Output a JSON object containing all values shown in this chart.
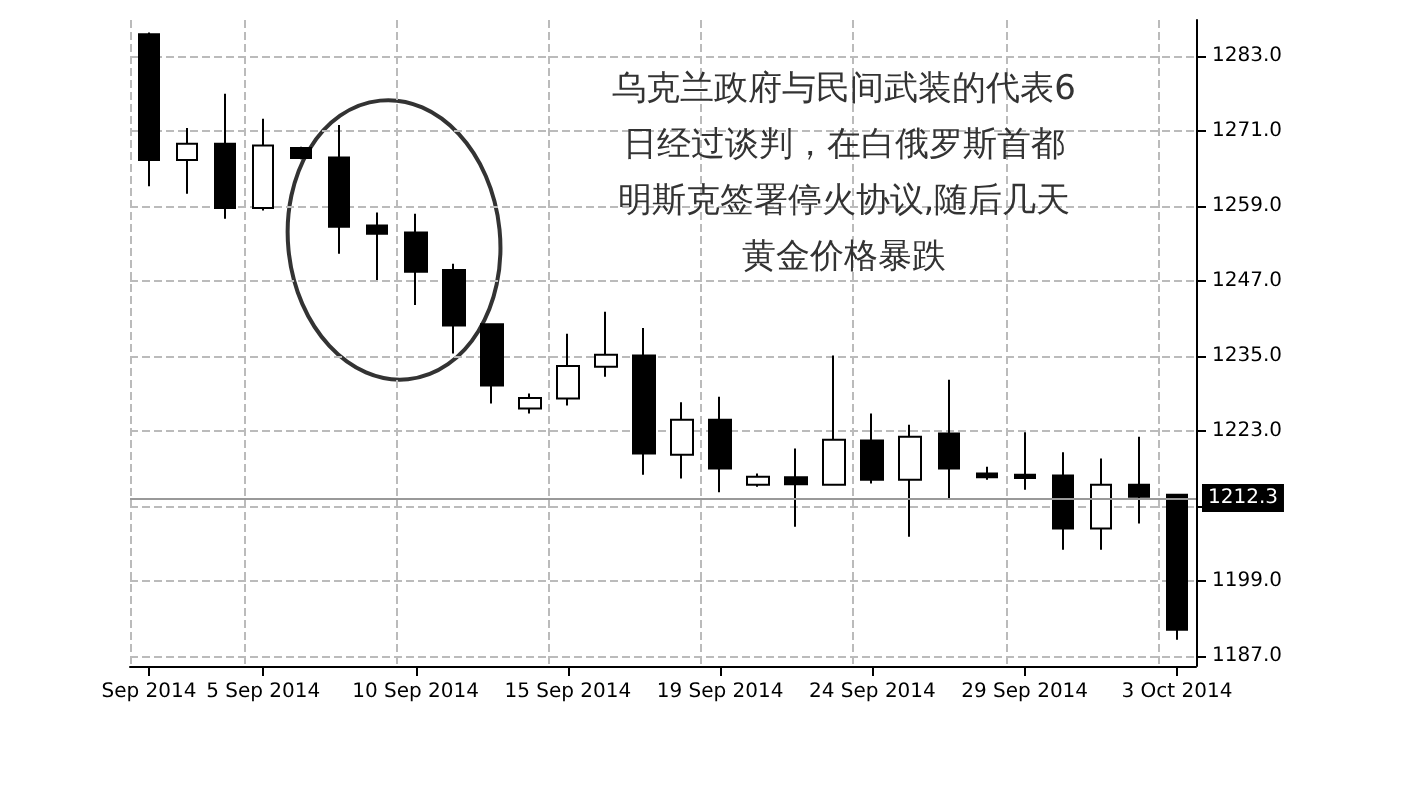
{
  "chart_data": {
    "type": "candlestick",
    "categories": [
      "Sep 2014",
      null,
      null,
      "5 Sep 2014",
      null,
      null,
      null,
      "10 Sep 2014",
      null,
      null,
      null,
      "15 Sep 2014",
      null,
      null,
      null,
      "19 Sep 2014",
      null,
      null,
      null,
      "24 Sep 2014",
      null,
      null,
      null,
      "29 Sep 2014",
      null,
      null,
      null,
      "3 Oct 2014"
    ],
    "ohlc": [
      [
        1286.5,
        1286.8,
        1262.2,
        1266.4
      ],
      [
        1266.4,
        1271.5,
        1261.0,
        1269.0
      ],
      [
        1269.0,
        1277.0,
        1257.0,
        1258.7
      ],
      [
        1258.7,
        1273.0,
        1258.3,
        1268.7
      ],
      [
        1268.3,
        1268.5,
        1266.5,
        1266.7
      ],
      [
        1266.8,
        1272.0,
        1251.4,
        1255.7
      ],
      [
        1255.9,
        1258.0,
        1247.2,
        1254.6
      ],
      [
        1254.8,
        1257.8,
        1243.2,
        1248.5
      ],
      [
        1248.8,
        1249.8,
        1235.4,
        1239.9
      ],
      [
        1240.1,
        1240.1,
        1227.4,
        1230.3
      ],
      [
        1226.6,
        1229.0,
        1225.8,
        1228.3
      ],
      [
        1228.2,
        1238.6,
        1227.1,
        1233.4
      ],
      [
        1233.3,
        1242.1,
        1231.7,
        1235.2
      ],
      [
        1235.1,
        1239.5,
        1216.0,
        1219.4
      ],
      [
        1219.2,
        1227.6,
        1215.4,
        1224.8
      ],
      [
        1224.8,
        1228.5,
        1213.2,
        1217.0
      ],
      [
        1214.4,
        1216.2,
        1214.1,
        1215.7
      ],
      [
        1215.6,
        1220.2,
        1207.7,
        1214.5
      ],
      [
        1214.4,
        1235.1,
        1214.4,
        1221.6
      ],
      [
        1221.5,
        1225.8,
        1214.6,
        1215.2
      ],
      [
        1215.2,
        1224.0,
        1206.1,
        1222.1
      ],
      [
        1222.6,
        1231.2,
        1212.0,
        1217.0
      ],
      [
        1216.2,
        1217.3,
        1215.2,
        1215.6
      ],
      [
        1216.0,
        1222.8,
        1213.6,
        1215.5
      ],
      [
        1215.9,
        1219.6,
        1204.0,
        1207.4
      ],
      [
        1207.4,
        1218.6,
        1204.0,
        1214.4
      ],
      [
        1214.4,
        1222.1,
        1208.2,
        1212.5
      ],
      [
        1212.8,
        1212.8,
        1189.6,
        1191.2
      ]
    ],
    "color": "#000000",
    "ylim": [
      1185.4,
      1288.8
    ],
    "yticks": [
      {
        "value": 1187,
        "label": "1187.0"
      },
      {
        "value": 1199,
        "label": "1199.0"
      },
      {
        "value": 1211,
        "label": null
      },
      {
        "value": 1223,
        "label": "1223.0"
      },
      {
        "value": 1235,
        "label": "1235.0"
      },
      {
        "value": 1247,
        "label": "1247.0"
      },
      {
        "value": 1259,
        "label": "1259.0"
      },
      {
        "value": 1271,
        "label": "1271.0"
      },
      {
        "value": 1283,
        "label": "1283.0"
      }
    ],
    "ref_lines": [
      {
        "axis": "y",
        "value": 1212.3,
        "label": "1212.3",
        "color": "#999999"
      }
    ],
    "annotations": [
      "乌克兰政府与民间武装的代表6",
      "日经过谈判，在白俄罗斯首都",
      "明斯克签署停火协议,随后几天",
      "黄金价格暴跌"
    ],
    "grid": true
  }
}
